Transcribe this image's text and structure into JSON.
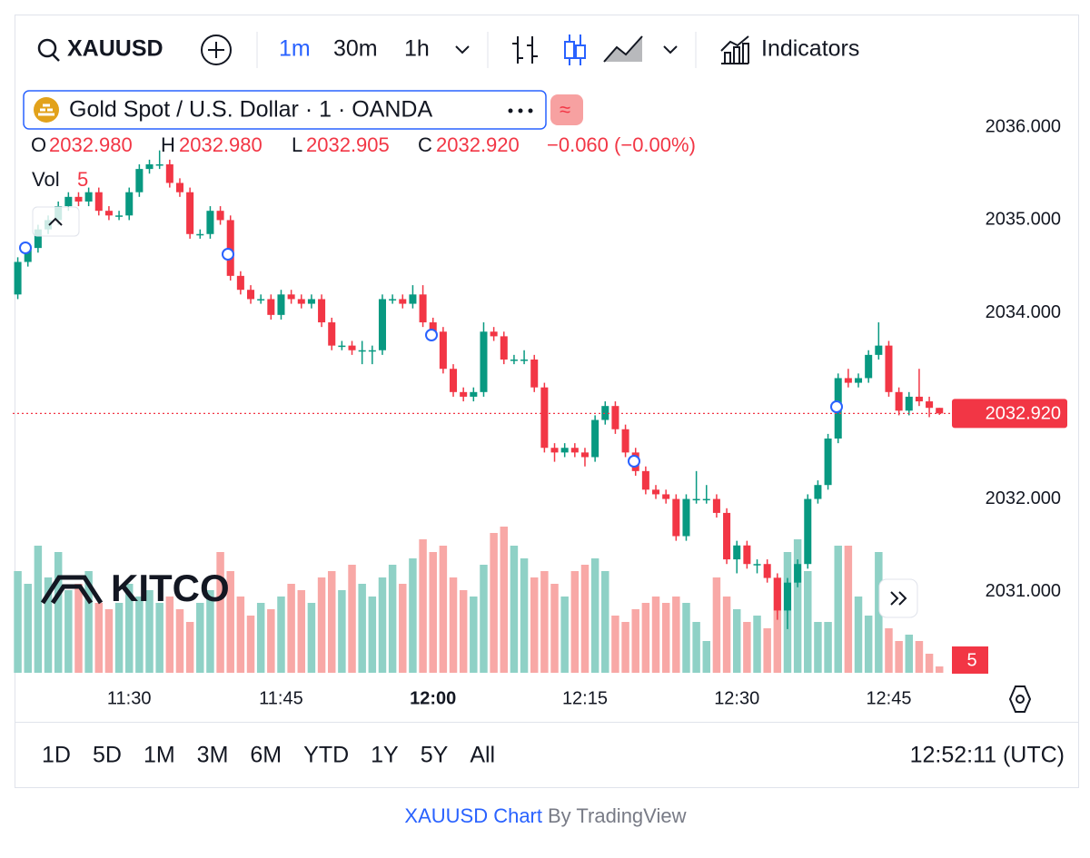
{
  "toolbar": {
    "symbol": "XAUUSD",
    "intervals": [
      "1m",
      "30m",
      "1h"
    ],
    "indicators": "Indicators"
  },
  "ranges": [
    "1D",
    "5D",
    "1M",
    "3M",
    "6M",
    "YTD",
    "1Y",
    "5Y",
    "All"
  ],
  "clock": "12:52:11 (UTC)",
  "footer": {
    "link": "XAUUSD Chart",
    "by": "By TradingView"
  },
  "logo": "KITCO",
  "chart_data": {
    "type": "candlestick",
    "title": "Gold Spot / U.S. Dollar · 1 · OANDA",
    "legend": {
      "open_label": "O",
      "open": "2032.980",
      "high_label": "H",
      "high": "2032.980",
      "low_label": "L",
      "low": "2032.905",
      "close_label": "C",
      "close": "2032.920",
      "change": "−0.060 (−0.00%)",
      "volume_label": "Vol"
    },
    "last_price_label": "2032.920",
    "up_color": "#089981",
    "down_color": "#f23645",
    "volume_up_color": "#8fd1c6",
    "volume_down_color": "#f8a8a6",
    "x": [
      "11:19",
      "11:20",
      "11:21",
      "11:22",
      "11:23",
      "11:24",
      "11:25",
      "11:26",
      "11:27",
      "11:28",
      "11:29",
      "11:30",
      "11:31",
      "11:32",
      "11:33",
      "11:34",
      "11:35",
      "11:36",
      "11:37",
      "11:38",
      "11:39",
      "11:40",
      "11:41",
      "11:42",
      "11:43",
      "11:44",
      "11:45",
      "11:46",
      "11:47",
      "11:48",
      "11:49",
      "11:50",
      "11:51",
      "11:52",
      "11:53",
      "11:54",
      "11:55",
      "11:56",
      "11:57",
      "11:58",
      "11:59",
      "12:00",
      "12:01",
      "12:02",
      "12:03",
      "12:04",
      "12:05",
      "12:06",
      "12:07",
      "12:08",
      "12:09",
      "12:10",
      "12:11",
      "12:12",
      "12:13",
      "12:14",
      "12:15",
      "12:16",
      "12:17",
      "12:18",
      "12:19",
      "12:20",
      "12:21",
      "12:22",
      "12:23",
      "12:24",
      "12:25",
      "12:26",
      "12:27",
      "12:28",
      "12:29",
      "12:30",
      "12:31",
      "12:32",
      "12:33",
      "12:34",
      "12:35",
      "12:36",
      "12:37",
      "12:38",
      "12:39",
      "12:40",
      "12:41",
      "12:42",
      "12:43",
      "12:44",
      "12:45",
      "12:46",
      "12:47",
      "12:48",
      "12:49",
      "12:50"
    ],
    "open": [
      2034.2,
      2034.55,
      2034.7,
      2034.9,
      2035.0,
      2035.15,
      2035.25,
      2035.2,
      2035.3,
      2035.1,
      2035.05,
      2035.05,
      2035.3,
      2035.55,
      2035.6,
      2035.6,
      2035.4,
      2035.3,
      2034.85,
      2034.85,
      2035.1,
      2035.0,
      2034.4,
      2034.25,
      2034.15,
      2034.15,
      2033.98,
      2034.2,
      2034.15,
      2034.1,
      2034.15,
      2033.9,
      2033.65,
      2033.65,
      2033.6,
      2033.6,
      2033.6,
      2034.15,
      2034.15,
      2034.1,
      2034.2,
      2033.9,
      2033.8,
      2033.4,
      2033.15,
      2033.1,
      2033.15,
      2033.8,
      2033.75,
      2033.5,
      2033.5,
      2033.5,
      2033.2,
      2032.55,
      2032.5,
      2032.55,
      2032.5,
      2032.45,
      2032.85,
      2033.0,
      2032.75,
      2032.5,
      2032.3,
      2032.1,
      2032.05,
      2032.0,
      2031.6,
      2032.0,
      2032.0,
      2032.0,
      2031.85,
      2031.35,
      2031.5,
      2031.3,
      2031.3,
      2031.15,
      2030.8,
      2031.1,
      2031.3,
      2032.0,
      2032.15,
      2032.65,
      2033.3,
      2033.25,
      2033.3,
      2033.55,
      2033.65,
      2033.15,
      2032.95,
      2033.1,
      2033.05,
      2032.98
    ],
    "high": [
      2034.6,
      2034.75,
      2034.95,
      2035.05,
      2035.2,
      2035.3,
      2035.3,
      2035.35,
      2035.35,
      2035.15,
      2035.1,
      2035.35,
      2035.6,
      2035.65,
      2035.75,
      2035.65,
      2035.45,
      2035.35,
      2034.9,
      2035.15,
      2035.15,
      2035.05,
      2034.45,
      2034.3,
      2034.2,
      2034.2,
      2034.25,
      2034.25,
      2034.2,
      2034.2,
      2034.2,
      2033.95,
      2033.7,
      2033.7,
      2033.7,
      2033.65,
      2034.2,
      2034.2,
      2034.2,
      2034.3,
      2034.3,
      2033.95,
      2033.85,
      2033.45,
      2033.2,
      2033.2,
      2033.9,
      2033.85,
      2033.8,
      2033.55,
      2033.6,
      2033.55,
      2033.25,
      2032.6,
      2032.6,
      2032.6,
      2032.55,
      2032.9,
      2033.05,
      2033.05,
      2032.8,
      2032.55,
      2032.35,
      2032.15,
      2032.1,
      2032.05,
      2032.05,
      2032.3,
      2032.15,
      2032.05,
      2031.9,
      2031.55,
      2031.55,
      2031.35,
      2031.35,
      2031.2,
      2031.15,
      2031.35,
      2032.05,
      2032.2,
      2032.7,
      2033.35,
      2033.4,
      2033.35,
      2033.6,
      2033.9,
      2033.7,
      2033.2,
      2033.15,
      2033.4,
      2033.1,
      2032.98
    ],
    "low": [
      2034.15,
      2034.5,
      2034.65,
      2034.85,
      2034.95,
      2035.1,
      2035.15,
      2035.15,
      2035.05,
      2035.0,
      2035.0,
      2035.0,
      2035.25,
      2035.5,
      2035.55,
      2035.35,
      2035.25,
      2034.8,
      2034.8,
      2034.8,
      2034.95,
      2034.35,
      2034.2,
      2034.1,
      2034.1,
      2033.93,
      2033.93,
      2034.1,
      2034.05,
      2034.05,
      2033.85,
      2033.6,
      2033.6,
      2033.55,
      2033.45,
      2033.45,
      2033.55,
      2034.1,
      2034.05,
      2034.05,
      2033.85,
      2033.75,
      2033.35,
      2033.1,
      2033.05,
      2033.05,
      2033.1,
      2033.7,
      2033.45,
      2033.45,
      2033.45,
      2033.15,
      2032.5,
      2032.4,
      2032.45,
      2032.45,
      2032.35,
      2032.4,
      2032.8,
      2032.7,
      2032.45,
      2032.25,
      2032.05,
      2032.0,
      2031.95,
      2031.55,
      2031.55,
      2031.95,
      2031.95,
      2031.8,
      2031.3,
      2031.2,
      2031.25,
      2031.2,
      2031.1,
      2030.7,
      2030.6,
      2031.05,
      2031.25,
      2031.95,
      2032.1,
      2032.6,
      2033.2,
      2033.2,
      2033.25,
      2033.5,
      2033.1,
      2032.9,
      2032.9,
      2033.0,
      2032.88,
      2032.905
    ],
    "close": [
      2034.55,
      2034.7,
      2034.9,
      2035.0,
      2035.15,
      2035.25,
      2035.2,
      2035.3,
      2035.1,
      2035.05,
      2035.05,
      2035.3,
      2035.55,
      2035.6,
      2035.6,
      2035.4,
      2035.3,
      2034.85,
      2034.85,
      2035.1,
      2035.0,
      2034.4,
      2034.25,
      2034.15,
      2034.15,
      2033.98,
      2034.2,
      2034.15,
      2034.1,
      2034.15,
      2033.9,
      2033.65,
      2033.65,
      2033.6,
      2033.6,
      2033.6,
      2034.15,
      2034.15,
      2034.1,
      2034.2,
      2033.9,
      2033.8,
      2033.4,
      2033.15,
      2033.1,
      2033.15,
      2033.8,
      2033.75,
      2033.5,
      2033.5,
      2033.5,
      2033.2,
      2032.55,
      2032.5,
      2032.55,
      2032.5,
      2032.45,
      2032.85,
      2033.0,
      2032.75,
      2032.5,
      2032.3,
      2032.1,
      2032.05,
      2032.0,
      2031.6,
      2032.0,
      2032.0,
      2032.0,
      2031.85,
      2031.35,
      2031.5,
      2031.3,
      2031.3,
      2031.15,
      2030.8,
      2031.1,
      2031.3,
      2032.0,
      2032.15,
      2032.65,
      2033.3,
      2033.25,
      2033.3,
      2033.55,
      2033.65,
      2033.15,
      2032.95,
      2033.1,
      2033.05,
      2032.98,
      2032.92
    ],
    "volume": [
      80,
      70,
      100,
      75,
      95,
      65,
      70,
      80,
      55,
      50,
      55,
      70,
      60,
      65,
      55,
      60,
      50,
      40,
      55,
      65,
      95,
      80,
      60,
      45,
      55,
      50,
      60,
      70,
      65,
      55,
      75,
      80,
      65,
      85,
      70,
      60,
      75,
      85,
      70,
      90,
      105,
      95,
      100,
      75,
      65,
      60,
      85,
      110,
      115,
      100,
      90,
      75,
      80,
      70,
      60,
      80,
      85,
      90,
      80,
      45,
      40,
      50,
      55,
      60,
      55,
      60,
      55,
      40,
      25,
      75,
      60,
      50,
      40,
      45,
      35,
      75,
      95,
      105,
      80,
      40,
      40,
      100,
      100,
      60,
      45,
      95,
      35,
      25,
      30,
      25,
      15,
      5
    ],
    "ylim": [
      2030.13,
      2036.44
    ],
    "yticks": [
      {
        "value": 2031,
        "label": "2031.000"
      },
      {
        "value": 2032,
        "label": "2032.000"
      },
      {
        "value": 2034,
        "label": "2034.000"
      },
      {
        "value": 2035,
        "label": "2035.000"
      },
      {
        "value": 2036,
        "label": "2036.000"
      }
    ],
    "volume_ylim": [
      0,
      125
    ],
    "xticks": [
      "11:30",
      "11:45",
      "12:00",
      "12:15",
      "12:30",
      "12:45"
    ]
  }
}
